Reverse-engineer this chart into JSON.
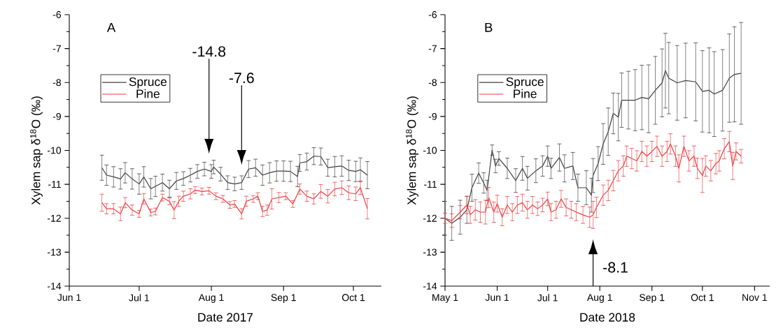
{
  "chart_data": [
    {
      "type": "line",
      "xlabel": "Date 2017",
      "ylabel": "Xylem sap δ$^{18}$O (‰)",
      "legend": "top left",
      "xlim": [
        "2017-06-01",
        "2017-10-13"
      ],
      "ylim": [
        -14,
        -6
      ],
      "yticks": [
        -14,
        -13,
        -12,
        -11,
        -10,
        -9,
        -8,
        -7,
        -6
      ],
      "xticks": [
        {
          "value": "2017-06-01",
          "label": "Jun 1"
        },
        {
          "value": "2017-07-01",
          "label": "Jul 1"
        },
        {
          "value": "2017-08-01",
          "label": "Aug 1"
        },
        {
          "value": "2017-09-01",
          "label": "Sep 1"
        },
        {
          "value": "2017-10-01",
          "label": "Oct 1"
        }
      ],
      "annotations": [
        "A"
      ],
      "ref_lines": [
        {
          "axis": "x",
          "value": "2017-07-31",
          "label": "-14.8"
        },
        {
          "axis": "x",
          "value": "2017-08-14",
          "label": "-7.6"
        }
      ],
      "series": [
        {
          "name": "Spruce",
          "color": "#3f3f3f",
          "x": [
            "2017-06-15",
            "2017-06-17",
            "2017-06-20",
            "2017-06-23",
            "2017-06-25",
            "2017-06-28",
            "2017-07-01",
            "2017-07-03",
            "2017-07-06",
            "2017-07-08",
            "2017-07-11",
            "2017-07-14",
            "2017-07-17",
            "2017-07-20",
            "2017-07-23",
            "2017-07-26",
            "2017-07-29",
            "2017-08-01",
            "2017-08-02",
            "2017-08-05",
            "2017-08-08",
            "2017-08-11",
            "2017-08-14",
            "2017-08-17",
            "2017-08-20",
            "2017-08-23",
            "2017-08-26",
            "2017-08-29",
            "2017-09-01",
            "2017-09-04",
            "2017-09-07",
            "2017-09-08",
            "2017-09-11",
            "2017-09-14",
            "2017-09-17",
            "2017-09-20",
            "2017-09-23",
            "2017-09-26",
            "2017-09-29",
            "2017-10-02",
            "2017-10-04",
            "2017-10-07"
          ],
          "values": [
            -10.51,
            -10.73,
            -10.78,
            -10.84,
            -10.66,
            -10.84,
            -10.99,
            -10.78,
            -11.13,
            -11.06,
            -10.95,
            -11.13,
            -10.9,
            -10.83,
            -10.73,
            -10.62,
            -10.55,
            -10.62,
            -10.49,
            -10.7,
            -10.95,
            -10.99,
            -10.95,
            -10.55,
            -10.51,
            -10.73,
            -10.66,
            -10.61,
            -10.61,
            -10.62,
            -10.77,
            -10.37,
            -10.33,
            -10.17,
            -10.18,
            -10.51,
            -10.48,
            -10.46,
            -10.59,
            -10.62,
            -10.57,
            -10.73
          ],
          "errors": [
            0.37,
            0.3,
            0.3,
            0.3,
            0.3,
            0.3,
            0.3,
            0.3,
            0.3,
            0.3,
            0.25,
            0.25,
            0.25,
            0.2,
            0.2,
            0.2,
            0.2,
            0.2,
            0.2,
            0.2,
            0.2,
            0.2,
            0.2,
            0.25,
            0.25,
            0.3,
            0.3,
            0.3,
            0.3,
            0.3,
            0.3,
            0.25,
            0.25,
            0.25,
            0.25,
            0.25,
            0.3,
            0.3,
            0.3,
            0.3,
            0.35,
            0.4
          ]
        },
        {
          "name": "Pine",
          "color": "#ef3b3e",
          "x": [
            "2017-06-15",
            "2017-06-17",
            "2017-06-20",
            "2017-06-23",
            "2017-06-25",
            "2017-06-28",
            "2017-07-01",
            "2017-07-03",
            "2017-07-06",
            "2017-07-08",
            "2017-07-11",
            "2017-07-14",
            "2017-07-16",
            "2017-07-18",
            "2017-07-20",
            "2017-07-23",
            "2017-07-25",
            "2017-07-28",
            "2017-07-31",
            "2017-08-03",
            "2017-08-06",
            "2017-08-09",
            "2017-08-11",
            "2017-08-14",
            "2017-08-16",
            "2017-08-19",
            "2017-08-21",
            "2017-08-23",
            "2017-08-25",
            "2017-08-27",
            "2017-08-30",
            "2017-09-02",
            "2017-09-05",
            "2017-09-08",
            "2017-09-11",
            "2017-09-14",
            "2017-09-17",
            "2017-09-20",
            "2017-09-23",
            "2017-09-26",
            "2017-09-29",
            "2017-10-02",
            "2017-10-04",
            "2017-10-07"
          ],
          "values": [
            -11.54,
            -11.72,
            -11.72,
            -11.87,
            -11.54,
            -11.76,
            -11.87,
            -11.43,
            -11.83,
            -11.8,
            -11.39,
            -11.5,
            -11.76,
            -11.5,
            -11.35,
            -11.28,
            -11.17,
            -11.21,
            -11.19,
            -11.35,
            -11.43,
            -11.61,
            -11.58,
            -11.87,
            -11.5,
            -11.43,
            -11.35,
            -11.8,
            -11.76,
            -11.43,
            -11.39,
            -11.35,
            -11.58,
            -11.14,
            -11.35,
            -11.43,
            -11.21,
            -11.35,
            -11.14,
            -11.1,
            -11.25,
            -11.28,
            -11.1,
            -11.72
          ],
          "errors": [
            0.25,
            0.15,
            0.15,
            0.2,
            0.15,
            0.15,
            0.1,
            0.15,
            0.1,
            0.1,
            0.1,
            0.1,
            0.25,
            0.15,
            0.15,
            0.15,
            0.1,
            0.1,
            0.1,
            0.1,
            0.1,
            0.1,
            0.1,
            0.15,
            0.15,
            0.1,
            0.1,
            0.15,
            0.15,
            0.3,
            0.15,
            0.1,
            0.1,
            0.15,
            0.15,
            0.15,
            0.2,
            0.2,
            0.2,
            0.2,
            0.2,
            0.2,
            0.2,
            0.3
          ]
        }
      ]
    },
    {
      "type": "line",
      "xlabel": "Date 2018",
      "ylabel": "Xylem sap δ$^{18}$O (‰)",
      "legend": "top left",
      "xlim": [
        "2018-05-01",
        "2018-11-10"
      ],
      "ylim": [
        -14,
        -6
      ],
      "yticks": [
        -14,
        -13,
        -12,
        -11,
        -10,
        -9,
        -8,
        -7,
        -6
      ],
      "xticks": [
        {
          "value": "2018-05-01",
          "label": "May 1"
        },
        {
          "value": "2018-06-01",
          "label": "Jun 1"
        },
        {
          "value": "2018-07-01",
          "label": "Jul 1"
        },
        {
          "value": "2018-08-01",
          "label": "Aug 1"
        },
        {
          "value": "2018-09-01",
          "label": "Sep 1"
        },
        {
          "value": "2018-10-01",
          "label": "Oct 1"
        },
        {
          "value": "2018-11-01",
          "label": "Nov 1"
        }
      ],
      "annotations": [
        "B"
      ],
      "ref_lines": [
        {
          "axis": "x",
          "value": "2018-07-28",
          "label": "-8.1"
        }
      ],
      "series": [
        {
          "name": "Spruce",
          "color": "#3f3f3f",
          "x": [
            "2018-05-01",
            "2018-05-05",
            "2018-05-10",
            "2018-05-14",
            "2018-05-17",
            "2018-05-21",
            "2018-05-24",
            "2018-05-26",
            "2018-05-29",
            "2018-05-31",
            "2018-06-02",
            "2018-06-07",
            "2018-06-12",
            "2018-06-16",
            "2018-06-19",
            "2018-06-24",
            "2018-06-28",
            "2018-07-01",
            "2018-07-03",
            "2018-07-08",
            "2018-07-11",
            "2018-07-16",
            "2018-07-19",
            "2018-07-24",
            "2018-07-27",
            "2018-07-28",
            "2018-07-31",
            "2018-08-03",
            "2018-08-06",
            "2018-08-09",
            "2018-08-12",
            "2018-08-14",
            "2018-08-18",
            "2018-08-22",
            "2018-08-26",
            "2018-08-30",
            "2018-09-03",
            "2018-09-07",
            "2018-09-09",
            "2018-09-11",
            "2018-09-16",
            "2018-09-21",
            "2018-09-27",
            "2018-10-01",
            "2018-10-05",
            "2018-10-08",
            "2018-10-13",
            "2018-10-17",
            "2018-10-20",
            "2018-10-24"
          ],
          "values": [
            -12.0,
            -12.15,
            -11.97,
            -11.75,
            -11.1,
            -10.67,
            -10.96,
            -11.18,
            -9.99,
            -10.46,
            -10.24,
            -10.53,
            -10.89,
            -10.53,
            -10.82,
            -10.6,
            -10.46,
            -10.17,
            -10.53,
            -10.21,
            -10.53,
            -10.46,
            -11.1,
            -11.1,
            -11.32,
            -10.74,
            -10.39,
            -9.81,
            -9.45,
            -8.91,
            -9.02,
            -8.52,
            -8.52,
            -8.52,
            -8.44,
            -8.48,
            -8.23,
            -8.01,
            -7.65,
            -7.87,
            -8.01,
            -7.94,
            -7.98,
            -8.26,
            -8.23,
            -8.34,
            -8.23,
            -7.87,
            -7.76,
            -7.73
          ],
          "errors": [
            0.5,
            0.5,
            0.5,
            0.4,
            0.4,
            0.3,
            0.3,
            0.3,
            0.15,
            0.2,
            0.2,
            0.3,
            0.35,
            0.35,
            0.35,
            0.35,
            0.3,
            0.3,
            0.3,
            0.4,
            0.4,
            0.4,
            0.4,
            0.5,
            0.5,
            0.5,
            0.5,
            0.6,
            0.7,
            0.6,
            0.7,
            0.8,
            0.85,
            0.9,
            0.95,
            1.0,
            1.0,
            1.0,
            1.1,
            1.05,
            1.1,
            1.1,
            1.15,
            1.2,
            1.25,
            1.25,
            1.2,
            1.3,
            1.4,
            1.5
          ]
        },
        {
          "name": "Pine",
          "color": "#ef3b3e",
          "x": [
            "2018-05-01",
            "2018-05-05",
            "2018-05-10",
            "2018-05-14",
            "2018-05-16",
            "2018-05-19",
            "2018-05-22",
            "2018-05-25",
            "2018-05-27",
            "2018-05-30",
            "2018-06-01",
            "2018-06-04",
            "2018-06-07",
            "2018-06-10",
            "2018-06-13",
            "2018-06-16",
            "2018-06-19",
            "2018-06-22",
            "2018-06-25",
            "2018-06-28",
            "2018-07-01",
            "2018-07-03",
            "2018-07-06",
            "2018-07-09",
            "2018-07-12",
            "2018-07-15",
            "2018-07-18",
            "2018-07-22",
            "2018-07-26",
            "2018-07-28",
            "2018-07-30",
            "2018-08-03",
            "2018-08-06",
            "2018-08-09",
            "2018-08-12",
            "2018-08-15",
            "2018-08-17",
            "2018-08-20",
            "2018-08-23",
            "2018-08-26",
            "2018-08-29",
            "2018-09-01",
            "2018-09-04",
            "2018-09-07",
            "2018-09-10",
            "2018-09-12",
            "2018-09-15",
            "2018-09-17",
            "2018-09-20",
            "2018-09-23",
            "2018-09-26",
            "2018-09-28",
            "2018-10-01",
            "2018-10-03",
            "2018-10-06",
            "2018-10-09",
            "2018-10-11",
            "2018-10-14",
            "2018-10-17",
            "2018-10-19",
            "2018-10-21",
            "2018-10-24"
          ],
          "values": [
            -12.0,
            -12.07,
            -11.82,
            -11.61,
            -11.9,
            -11.75,
            -11.82,
            -11.82,
            -11.39,
            -11.82,
            -11.57,
            -11.97,
            -11.61,
            -11.82,
            -11.61,
            -11.54,
            -11.75,
            -11.61,
            -11.72,
            -11.61,
            -11.43,
            -11.82,
            -11.75,
            -11.43,
            -11.68,
            -11.75,
            -11.82,
            -11.9,
            -11.97,
            -11.9,
            -11.68,
            -11.32,
            -11.18,
            -10.89,
            -10.6,
            -10.46,
            -10.17,
            -10.24,
            -10.31,
            -10.03,
            -10.17,
            -10.03,
            -9.88,
            -10.17,
            -10.03,
            -9.81,
            -10.17,
            -10.53,
            -9.88,
            -10.31,
            -10.17,
            -10.53,
            -10.74,
            -10.46,
            -10.6,
            -10.39,
            -10.31,
            -9.95,
            -9.74,
            -10.46,
            -10.03,
            -10.17
          ],
          "errors": [
            0.15,
            0.2,
            0.2,
            0.25,
            0.25,
            0.3,
            0.3,
            0.35,
            0.3,
            0.3,
            0.25,
            0.25,
            0.25,
            0.25,
            0.25,
            0.25,
            0.25,
            0.25,
            0.2,
            0.2,
            0.2,
            0.25,
            0.25,
            0.25,
            0.25,
            0.25,
            0.25,
            0.25,
            0.3,
            0.4,
            0.3,
            0.3,
            0.3,
            0.3,
            0.3,
            0.3,
            0.3,
            0.3,
            0.3,
            0.3,
            0.3,
            0.3,
            0.3,
            0.3,
            0.3,
            0.3,
            0.3,
            0.4,
            0.3,
            0.3,
            0.3,
            0.3,
            0.5,
            0.3,
            0.3,
            0.3,
            0.3,
            0.3,
            0.3,
            0.4,
            0.25,
            0.2
          ]
        }
      ]
    }
  ]
}
